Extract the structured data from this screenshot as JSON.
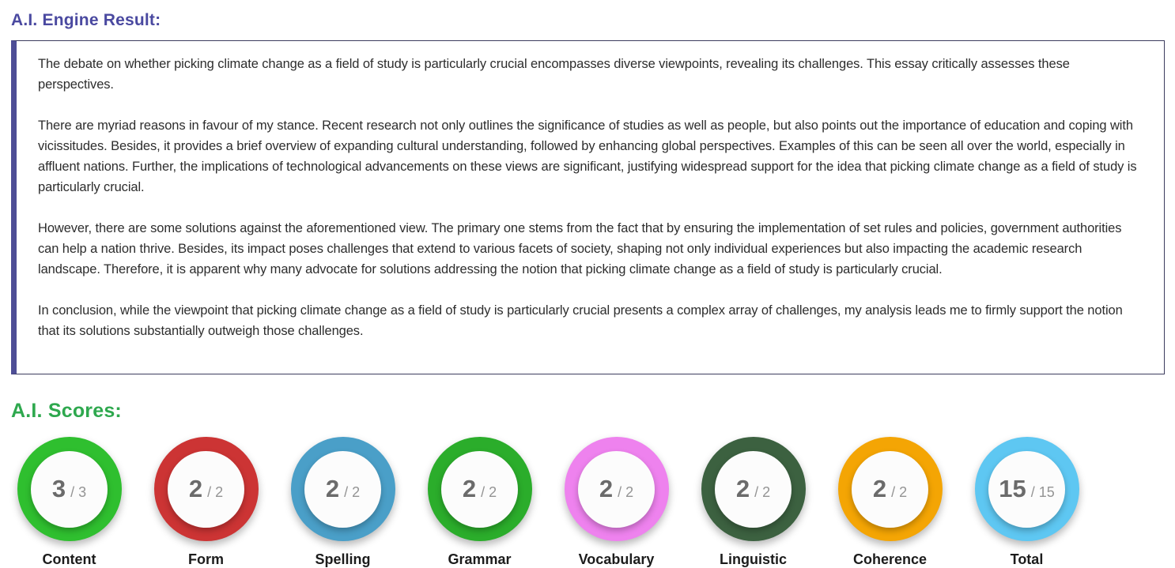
{
  "engine_result": {
    "title": "A.I. Engine Result:",
    "title_color": "#4A49A0",
    "box_border_color": "#3C3C5E",
    "box_accent_color": "#4E4E96",
    "paragraphs": [
      "The debate on whether picking climate change as a field of study is particularly crucial encompasses diverse viewpoints, revealing its challenges. This essay critically assesses these perspectives.",
      "There are myriad reasons in favour of my stance. Recent research not only outlines the significance of studies as well as people, but also points out the importance of education and coping with vicissitudes. Besides, it provides a brief overview of expanding cultural understanding, followed by enhancing global perspectives. Examples of this can be seen all over the world, especially in affluent nations. Further, the implications of technological advancements on these views are significant, justifying widespread support for the idea that picking climate change as a field of study is particularly crucial.",
      "However, there are some solutions against the aforementioned view. The primary one stems from the fact that by ensuring the implementation of set rules and policies, government authorities can help a nation thrive. Besides, its impact poses challenges that extend to various facets of society, shaping not only individual experiences but also impacting the academic research landscape. Therefore, it is apparent why many advocate for solutions addressing the notion that picking climate change as a field of study is particularly crucial.",
      "In conclusion, while the viewpoint that picking climate change as a field of study is particularly crucial presents a complex array of challenges, my analysis leads me to firmly support the notion that its solutions substantially outweigh those challenges."
    ]
  },
  "scores": {
    "title": "A.I. Scores:",
    "title_color": "#2EA84E",
    "value_color": "#6B6B6B",
    "max_color": "#949494",
    "items": [
      {
        "label": "Content",
        "value": "3",
        "max_text": "/ 3",
        "ring_color": "#2FBF2F"
      },
      {
        "label": "Form",
        "value": "2",
        "max_text": "/ 2",
        "ring_color": "#CC3434"
      },
      {
        "label": "Spelling",
        "value": "2",
        "max_text": "/ 2",
        "ring_color": "#4A9FC8"
      },
      {
        "label": "Grammar",
        "value": "2",
        "max_text": "/ 2",
        "ring_color": "#2BAD2B"
      },
      {
        "label": "Vocabulary",
        "value": "2",
        "max_text": "/ 2",
        "ring_color": "#EE82EE"
      },
      {
        "label": "Linguistic",
        "value": "2",
        "max_text": "/ 2",
        "ring_color": "#3C6140"
      },
      {
        "label": "Coherence",
        "value": "2",
        "max_text": "/ 2",
        "ring_color": "#F4A504"
      },
      {
        "label": "Total",
        "value": "15",
        "max_text": "/ 15",
        "ring_color": "#5EC7F2"
      }
    ]
  }
}
